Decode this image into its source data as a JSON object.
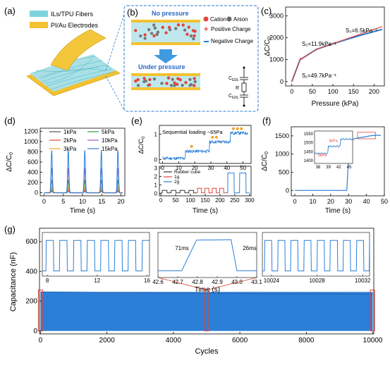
{
  "panel_a": {
    "label": "(a)",
    "legend": [
      {
        "text": "ILs/TPU Fibers",
        "color": "#7fd3dc"
      },
      {
        "text": "PI/Au Electrodes",
        "color": "#f2c230"
      }
    ]
  },
  "panel_b": {
    "label": "(b)",
    "top_caption": "No pressure",
    "bottom_caption": "Under pressure",
    "legend": {
      "cation": "Cation",
      "anion": "Anion",
      "positive": "Positive Charge",
      "negative": "Negative Charge"
    },
    "circuit_labels": {
      "c_top": "C",
      "c_top_sub": "EDL",
      "r": "R",
      "c_bottom": "C",
      "c_bottom_sub": "EDL"
    }
  },
  "panel_c": {
    "label": "(c)",
    "ylabel_main": "ΔC/C",
    "ylabel_sub": "0",
    "xlabel": "Pressure (kPa)",
    "x_ticks": [
      "0",
      "50",
      "100",
      "150",
      "200"
    ],
    "y_ticks": [
      "0",
      "1000",
      "2000",
      "3000"
    ],
    "annotations": {
      "s1": "S₁=49.7kPa⁻¹",
      "s2": "S₂=11.9kPa⁻¹",
      "s3": "S₃=6.5kPa⁻¹"
    }
  },
  "panel_d": {
    "label": "(d)",
    "ylabel_main": "ΔC/C",
    "ylabel_sub": "0",
    "xlabel": "Time (s)",
    "x_ticks": [
      "0",
      "5",
      "10",
      "15",
      "20"
    ],
    "y_ticks": [
      "0",
      "200",
      "400",
      "600",
      "800",
      "1000",
      "1200"
    ],
    "legend": [
      {
        "text": "1kPa",
        "color": "#555555"
      },
      {
        "text": "2kPa",
        "color": "#e2453a"
      },
      {
        "text": "3kPa",
        "color": "#f0a42b"
      },
      {
        "text": "5kPa",
        "color": "#2e9b4a"
      },
      {
        "text": "10kPa",
        "color": "#a45fc9"
      },
      {
        "text": "15kPa",
        "color": "#2b7fd6"
      }
    ]
  },
  "panel_e": {
    "label": "(e)",
    "ylabel_main": "ΔC/C",
    "ylabel_sub": "0",
    "xlabel": "Time (s)",
    "top_text": "Sequential loading ~65Pa",
    "top_y_ticks": [
      "1",
      "0"
    ],
    "top_x_ticks": [
      "0",
      "10",
      "20",
      "30",
      "40",
      "50"
    ],
    "bottom_y_ticks": [
      "3",
      "2",
      "1",
      "0"
    ],
    "bottom_x_ticks": [
      "0",
      "50",
      "100",
      "150",
      "200",
      "250",
      "300"
    ],
    "legend": [
      {
        "text": "Rubber cube",
        "color": "#333333"
      },
      {
        "text": "1g",
        "color": "#e2453a"
      },
      {
        "text": "2g",
        "color": "#2b7fd6"
      }
    ]
  },
  "panel_f": {
    "label": "(f)",
    "ylabel_main": "ΔC/C",
    "ylabel_sub": "0",
    "xlabel": "Time (s)",
    "x_ticks": [
      "0",
      "10",
      "20",
      "30",
      "40",
      "50"
    ],
    "y_ticks": [
      "0",
      "500",
      "1000",
      "1500"
    ],
    "inset_y_ticks": [
      "1550",
      "1500",
      "1450",
      "1400"
    ],
    "inset_x_ticks": [
      "36",
      "39",
      "42",
      "45"
    ],
    "inset_labels": {
      "l1": "3kPa",
      "l2": "3kPa"
    }
  },
  "panel_g": {
    "label": "(g)",
    "ylabel": "Capacitance (nF)",
    "xlabel": "Cycles",
    "x_ticks": [
      "0",
      "2000",
      "4000",
      "6000",
      "8000",
      "10000"
    ],
    "y_ticks": [
      "0",
      "200",
      "400",
      "600"
    ],
    "inset1_x_ticks": [
      "8",
      "12",
      "16"
    ],
    "inset2_x_ticks": [
      "42.6",
      "42.7",
      "42.8",
      "42.9",
      "43.0",
      "43.1"
    ],
    "inset2_xlabel": "Time (s)",
    "inset2_notes": {
      "rise": "71ms",
      "fall": "26ms"
    },
    "inset3_x_ticks": [
      "10024",
      "10028",
      "10032"
    ]
  },
  "colors": {
    "blue": "#2b7fd6",
    "red": "#e2453a",
    "black": "#000000",
    "highlight": "#f7dc9a",
    "dash": "#2a7bd0"
  }
}
